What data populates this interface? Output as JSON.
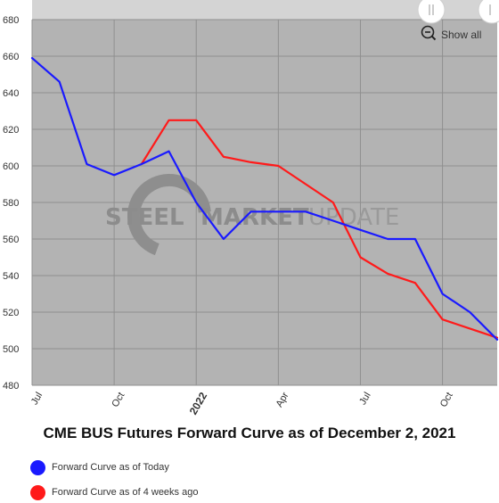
{
  "chart_data": {
    "type": "line",
    "title": "CME BUS Futures Forward Curve as of December 2, 2021",
    "xlabel": "",
    "ylabel": "",
    "x_ticks": [
      "Jul",
      "Oct",
      "2022",
      "Apr",
      "Jul",
      "Oct"
    ],
    "x": [
      "2021-07",
      "2021-08",
      "2021-09",
      "2021-10",
      "2021-11",
      "2021-12",
      "2022-01",
      "2022-02",
      "2022-03",
      "2022-04",
      "2022-05",
      "2022-06",
      "2022-07",
      "2022-08",
      "2022-09",
      "2022-10",
      "2022-11",
      "2022-12"
    ],
    "ylim": [
      480,
      680
    ],
    "y_ticks": [
      480,
      500,
      520,
      540,
      560,
      580,
      600,
      620,
      640,
      660,
      680
    ],
    "grid": true,
    "legend_position": "bottom-left",
    "series": [
      {
        "name": "Forward Curve as of Today",
        "color": "#1a1aff",
        "x": [
          "2021-07",
          "2021-08",
          "2021-09",
          "2021-10",
          "2021-11",
          "2021-12",
          "2022-01",
          "2022-02",
          "2022-03",
          "2022-04",
          "2022-05",
          "2022-06",
          "2022-07",
          "2022-08",
          "2022-09",
          "2022-10",
          "2022-11",
          "2022-12"
        ],
        "values": [
          659,
          646,
          601,
          595,
          601,
          608,
          580,
          560,
          575,
          575,
          575,
          570,
          565,
          560,
          560,
          530,
          520,
          505
        ]
      },
      {
        "name": "Forward Curve as of 4 weeks ago",
        "color": "#ff1a1a",
        "x": [
          "2021-11",
          "2021-12",
          "2022-01",
          "2022-02",
          "2022-03",
          "2022-04",
          "2022-05",
          "2022-06",
          "2022-07",
          "2022-08",
          "2022-09",
          "2022-10",
          "2022-11",
          "2022-12"
        ],
        "values": [
          601,
          625,
          625,
          605,
          602,
          600,
          590,
          580,
          550,
          541,
          536,
          516,
          511,
          506
        ]
      }
    ]
  },
  "watermark": {
    "word1": "STEEL",
    "word2": "MARKET",
    "word3": "UPDATE"
  },
  "controls": {
    "show_all_label": "Show all",
    "zoom_icon": "zoom-out-icon",
    "handle_icon": "drag-handle-icon"
  },
  "colors": {
    "plot_background": "#b3b3b3",
    "grid": "#8f8f8f",
    "navigator": "#d4d4d4"
  }
}
